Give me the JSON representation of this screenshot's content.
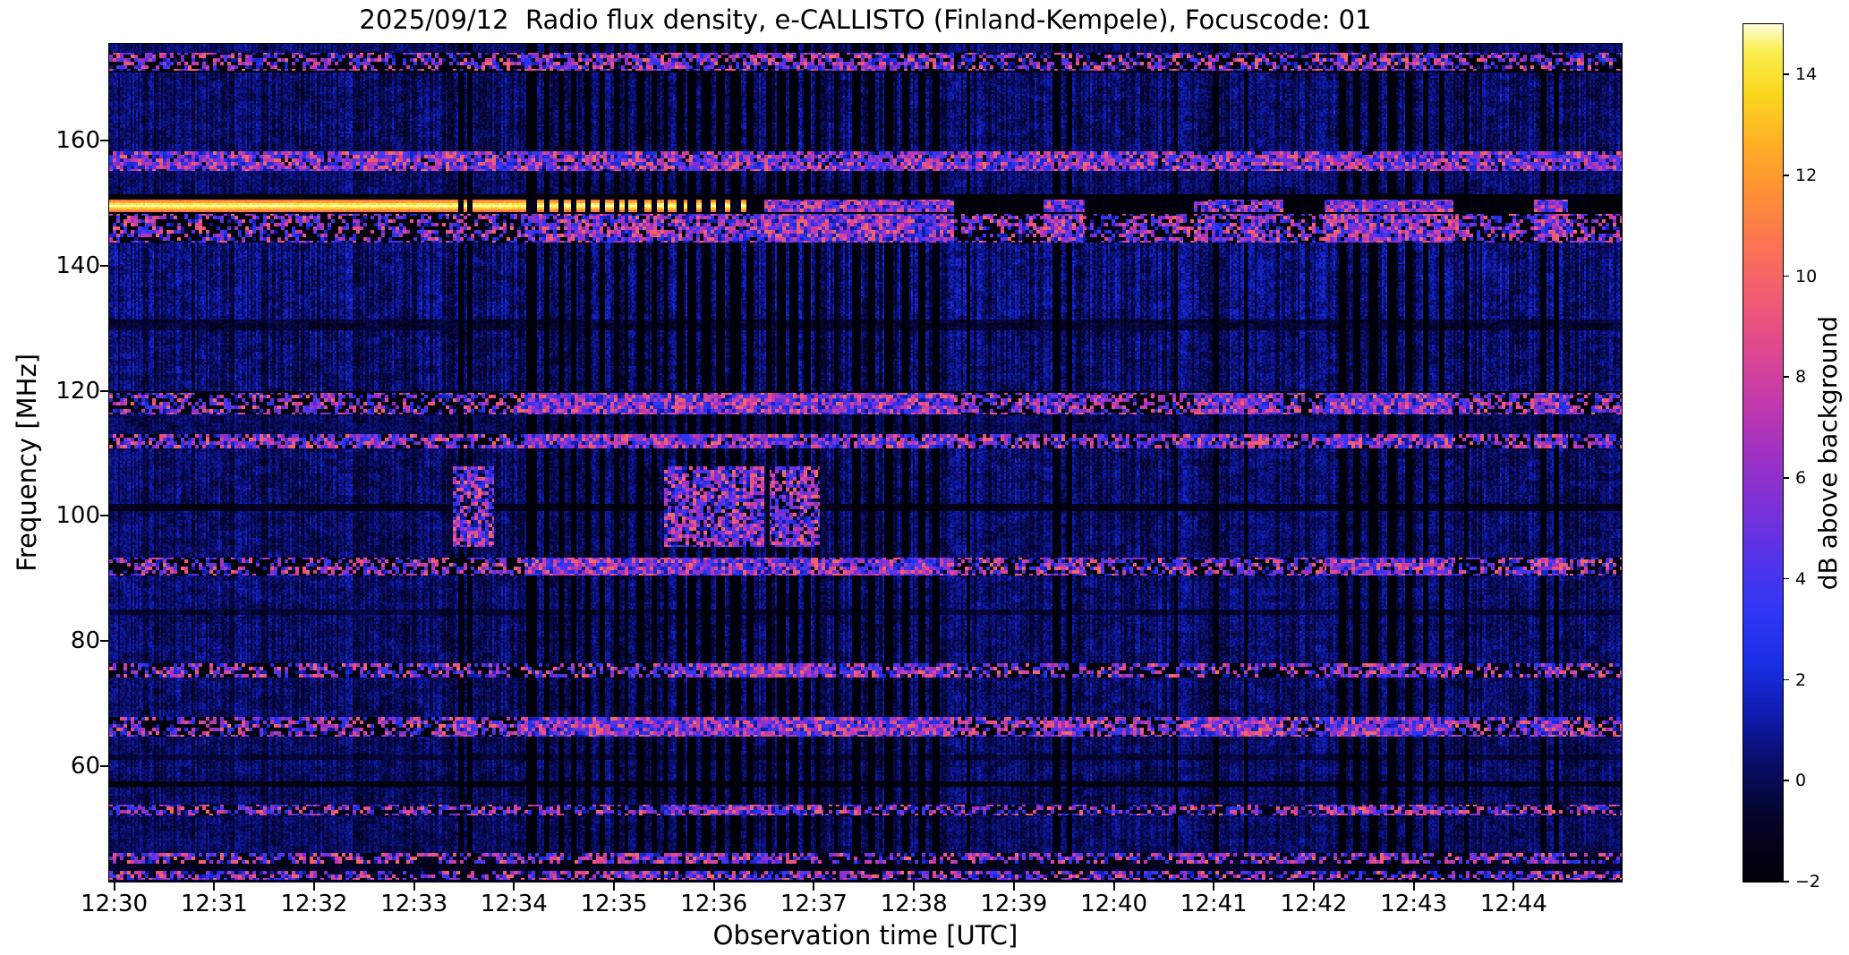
{
  "chart_data": {
    "type": "heatmap",
    "title": "2025/09/12  Radio flux density, e-CALLISTO (Finland-Kempele), Focuscode: 01",
    "xlabel": "Observation time [UTC]",
    "ylabel": "Frequency [MHz]",
    "start_time_utc": "12:30",
    "x_tick_labels": [
      "12:30",
      "12:31",
      "12:32",
      "12:33",
      "12:34",
      "12:35",
      "12:36",
      "12:37",
      "12:38",
      "12:39",
      "12:40",
      "12:41",
      "12:42",
      "12:43",
      "12:44"
    ],
    "x_tick_minutes": [
      0,
      1,
      2,
      3,
      4,
      5,
      6,
      7,
      8,
      9,
      10,
      11,
      12,
      13,
      14
    ],
    "time_range_minutes": [
      -0.05,
      15.08
    ],
    "y_tick_values": [
      160,
      140,
      120,
      100,
      80,
      60
    ],
    "freq_range_mhz": [
      41.5,
      175.5
    ],
    "colorbar": {
      "label": "dB above background",
      "tick_values": [
        14,
        12,
        10,
        8,
        6,
        4,
        2,
        0,
        -2
      ],
      "vmin": -2,
      "vmax": 15
    },
    "colormap_stops": [
      [
        0.0,
        0,
        0,
        6
      ],
      [
        0.07,
        4,
        3,
        40
      ],
      [
        0.13,
        8,
        12,
        95
      ],
      [
        0.19,
        14,
        26,
        170
      ],
      [
        0.25,
        25,
        45,
        225
      ],
      [
        0.31,
        45,
        55,
        245
      ],
      [
        0.37,
        80,
        52,
        235
      ],
      [
        0.44,
        125,
        48,
        215
      ],
      [
        0.5,
        160,
        50,
        195
      ],
      [
        0.56,
        195,
        58,
        172
      ],
      [
        0.62,
        222,
        72,
        145
      ],
      [
        0.68,
        240,
        92,
        115
      ],
      [
        0.74,
        250,
        115,
        85
      ],
      [
        0.8,
        254,
        142,
        55
      ],
      [
        0.86,
        254,
        175,
        38
      ],
      [
        0.92,
        251,
        215,
        30
      ],
      [
        0.97,
        250,
        240,
        80
      ],
      [
        1.0,
        252,
        252,
        215
      ]
    ],
    "bands": [
      {
        "f": [
          175.5,
          174.2
        ],
        "base": 1.2,
        "noise": 1.2,
        "streak": 0.7
      },
      {
        "f": [
          174.2,
          171.0
        ],
        "base": -1.3,
        "noise": 0.8,
        "streak": 0.2
      },
      {
        "f": [
          171.0,
          158.2
        ],
        "base": 1.5,
        "noise": 1.5,
        "streak": 1.1
      },
      {
        "f": [
          158.2,
          155.3
        ],
        "base": -1.1,
        "noise": 1.0,
        "streak": 0.2
      },
      {
        "f": [
          155.3,
          151.5
        ],
        "base": 1.3,
        "noise": 1.3,
        "streak": 0.8
      },
      {
        "f": [
          151.5,
          143.6
        ],
        "base": -1.45,
        "noise": 0.7,
        "streak": 0.2
      },
      {
        "f": [
          143.6,
          131.5
        ],
        "base": 1.9,
        "noise": 1.6,
        "streak": 1.3
      },
      {
        "f": [
          131.5,
          129.8
        ],
        "base": 0.1,
        "noise": 0.9,
        "streak": 0.4
      },
      {
        "f": [
          129.8,
          119.9
        ],
        "base": 1.6,
        "noise": 1.5,
        "streak": 1.2
      },
      {
        "f": [
          119.9,
          116.2
        ],
        "base": -1.3,
        "noise": 0.9,
        "streak": 0.2
      },
      {
        "f": [
          116.2,
          113.2
        ],
        "base": 0.9,
        "noise": 1.1,
        "streak": 0.6
      },
      {
        "f": [
          113.2,
          110.8
        ],
        "base": -1.4,
        "noise": 0.7,
        "streak": 0.2
      },
      {
        "f": [
          110.8,
          101.8
        ],
        "base": 1.4,
        "noise": 1.5,
        "streak": 1.0
      },
      {
        "f": [
          101.8,
          100.8
        ],
        "base": -0.8,
        "noise": 0.7,
        "streak": 0.2
      },
      {
        "f": [
          100.8,
          93.4
        ],
        "base": 1.4,
        "noise": 1.4,
        "streak": 1.0
      },
      {
        "f": [
          93.4,
          90.4
        ],
        "base": -1.3,
        "noise": 0.8,
        "streak": 0.2
      },
      {
        "f": [
          90.4,
          84.9
        ],
        "base": 1.5,
        "noise": 1.4,
        "streak": 1.0
      },
      {
        "f": [
          84.9,
          84.2
        ],
        "base": 0.0,
        "noise": 0.8,
        "streak": 0.3
      },
      {
        "f": [
          84.2,
          76.4
        ],
        "base": 1.4,
        "noise": 1.4,
        "streak": 1.0
      },
      {
        "f": [
          76.4,
          74.0
        ],
        "base": -1.1,
        "noise": 0.9,
        "streak": 0.2
      },
      {
        "f": [
          74.0,
          67.8
        ],
        "base": 1.4,
        "noise": 1.4,
        "streak": 1.0
      },
      {
        "f": [
          67.8,
          64.6
        ],
        "base": -1.4,
        "noise": 0.8,
        "streak": 0.2
      },
      {
        "f": [
          64.6,
          61.8
        ],
        "base": 1.3,
        "noise": 1.3,
        "streak": 0.9
      },
      {
        "f": [
          61.8,
          61.0
        ],
        "base": 0.1,
        "noise": 0.7,
        "streak": 0.3
      },
      {
        "f": [
          61.0,
          57.4
        ],
        "base": 1.3,
        "noise": 1.3,
        "streak": 0.9
      },
      {
        "f": [
          57.4,
          56.6
        ],
        "base": -1.2,
        "noise": 0.5,
        "streak": 0.1
      },
      {
        "f": [
          56.6,
          53.8
        ],
        "base": 1.2,
        "noise": 1.3,
        "streak": 0.9
      },
      {
        "f": [
          53.8,
          52.0
        ],
        "base": -0.5,
        "noise": 0.9,
        "streak": 0.3
      },
      {
        "f": [
          52.0,
          46.2
        ],
        "base": 1.2,
        "noise": 1.3,
        "streak": 0.8
      },
      {
        "f": [
          46.2,
          44.2
        ],
        "base": -0.7,
        "noise": 0.9,
        "streak": 0.2
      },
      {
        "f": [
          44.2,
          41.5
        ],
        "base": -0.3,
        "noise": 1.1,
        "streak": 0.4
      }
    ],
    "bright_line": {
      "center_mhz": 149.6,
      "half_width_mhz": 1.05,
      "t_end_min": 6.38,
      "peak_db": 15,
      "edge_db": 9
    },
    "speckle_rows": [
      {
        "f": [
          158.2,
          155.3
        ],
        "rate": 0.42,
        "windows": []
      },
      {
        "f": [
          174.1,
          171.1
        ],
        "rate": 0.03,
        "windows": [
          [
            4.1,
            6.5,
            0.25
          ],
          [
            6.5,
            8.4,
            0.25
          ],
          [
            12.1,
            13.4,
            0.25
          ]
        ]
      },
      {
        "f": [
          150.6,
          148.6
        ],
        "rate": 0.0,
        "windows": [
          [
            6.5,
            8.4,
            0.5
          ],
          [
            9.3,
            9.7,
            0.5
          ],
          [
            10.8,
            11.7,
            0.35
          ],
          [
            12.1,
            13.4,
            0.5
          ],
          [
            14.2,
            14.55,
            0.5
          ]
        ]
      },
      {
        "f": [
          148.3,
          143.8
        ],
        "rate": 0.02,
        "windows": [
          [
            4.1,
            6.5,
            0.3
          ],
          [
            6.5,
            8.4,
            0.5
          ],
          [
            9.3,
            9.7,
            0.4
          ],
          [
            10.8,
            11.7,
            0.3
          ],
          [
            12.1,
            13.4,
            0.45
          ],
          [
            14.2,
            14.55,
            0.45
          ]
        ]
      },
      {
        "f": [
          119.8,
          116.3
        ],
        "rate": 0.06,
        "windows": [
          [
            4.1,
            6.5,
            0.5
          ],
          [
            6.5,
            8.4,
            0.55
          ],
          [
            9.3,
            9.7,
            0.4
          ],
          [
            10.8,
            11.7,
            0.45
          ],
          [
            12.1,
            13.4,
            0.5
          ],
          [
            14.2,
            14.55,
            0.5
          ]
        ]
      },
      {
        "f": [
          113.1,
          110.9
        ],
        "rate": 0.1,
        "windows": [
          [
            0.0,
            3.6,
            0.22
          ],
          [
            4.1,
            6.5,
            0.45
          ],
          [
            6.5,
            8.4,
            0.4
          ],
          [
            10.8,
            11.7,
            0.4
          ],
          [
            12.1,
            13.4,
            0.4
          ],
          [
            14.2,
            14.55,
            0.4
          ]
        ]
      },
      {
        "f": [
          108.0,
          95.0
        ],
        "rate": 0.0,
        "windows": [
          [
            3.38,
            3.8,
            0.22
          ],
          [
            5.5,
            6.5,
            0.32
          ],
          [
            6.55,
            7.05,
            0.28
          ]
        ]
      },
      {
        "f": [
          93.3,
          90.5
        ],
        "rate": 0.04,
        "windows": [
          [
            4.1,
            6.5,
            0.5
          ],
          [
            6.5,
            8.4,
            0.45
          ],
          [
            9.3,
            9.7,
            0.35
          ],
          [
            12.1,
            13.4,
            0.45
          ],
          [
            14.2,
            14.55,
            0.45
          ]
        ]
      },
      {
        "f": [
          76.3,
          74.1
        ],
        "rate": 0.02,
        "windows": [
          [
            5.5,
            7.1,
            0.45
          ],
          [
            6.5,
            8.4,
            0.3
          ],
          [
            12.1,
            13.4,
            0.3
          ]
        ]
      },
      {
        "f": [
          67.7,
          64.7
        ],
        "rate": 0.1,
        "windows": [
          [
            3.4,
            3.62,
            0.6
          ],
          [
            4.1,
            6.5,
            0.5
          ],
          [
            6.5,
            8.4,
            0.55
          ],
          [
            9.3,
            9.7,
            0.4
          ],
          [
            10.7,
            11.7,
            0.55
          ],
          [
            12.1,
            13.4,
            0.5
          ],
          [
            14.2,
            14.55,
            0.55
          ]
        ]
      },
      {
        "f": [
          53.7,
          52.1
        ],
        "rate": 0.03,
        "windows": [
          [
            5.5,
            6.5,
            0.4
          ],
          [
            6.5,
            7.1,
            0.3
          ],
          [
            12.1,
            13.4,
            0.25
          ]
        ]
      },
      {
        "f": [
          46.1,
          44.3
        ],
        "rate": 0.05,
        "windows": [
          [
            0.2,
            0.5,
            0.3
          ],
          [
            5.0,
            6.6,
            0.3
          ],
          [
            14.2,
            14.5,
            0.4
          ]
        ]
      },
      {
        "f": [
          43.2,
          41.8
        ],
        "rate": 0.08,
        "windows": [
          [
            5.0,
            6.6,
            0.3
          ],
          [
            14.2,
            14.5,
            0.35
          ]
        ]
      }
    ],
    "gap_stripes": [
      {
        "t": 3.47,
        "w": 0.06
      },
      {
        "t": 3.56,
        "w": 0.04
      },
      {
        "t": 4.18,
        "w": 0.1
      },
      {
        "t": 4.33,
        "w": 0.06
      },
      {
        "t": 4.47,
        "w": 0.05
      },
      {
        "t": 4.6,
        "w": 0.06
      },
      {
        "t": 4.74,
        "w": 0.05
      },
      {
        "t": 4.88,
        "w": 0.06
      },
      {
        "t": 5.02,
        "w": 0.05
      },
      {
        "t": 5.13,
        "w": 0.04
      },
      {
        "t": 5.27,
        "w": 0.06
      },
      {
        "t": 5.4,
        "w": 0.05
      },
      {
        "t": 5.52,
        "w": 0.04
      },
      {
        "t": 5.66,
        "w": 0.08
      },
      {
        "t": 5.78,
        "w": 0.09
      },
      {
        "t": 5.92,
        "w": 0.1
      },
      {
        "t": 6.07,
        "w": 0.09
      },
      {
        "t": 6.22,
        "w": 0.1
      },
      {
        "t": 6.36,
        "w": 0.08
      },
      {
        "t": 6.55,
        "w": 0.06
      },
      {
        "t": 6.67,
        "w": 0.08
      },
      {
        "t": 6.8,
        "w": 0.1
      },
      {
        "t": 6.93,
        "w": 0.06
      },
      {
        "t": 7.04,
        "w": 0.05
      },
      {
        "t": 7.22,
        "w": 0.05
      },
      {
        "t": 7.42,
        "w": 0.09
      },
      {
        "t": 7.58,
        "w": 0.08
      },
      {
        "t": 7.74,
        "w": 0.09
      },
      {
        "t": 7.92,
        "w": 0.08
      },
      {
        "t": 8.08,
        "w": 0.07
      },
      {
        "t": 8.22,
        "w": 0.06
      },
      {
        "t": 8.55,
        "w": 0.04
      },
      {
        "t": 9.42,
        "w": 0.06
      },
      {
        "t": 9.55,
        "w": 0.05
      },
      {
        "t": 10.62,
        "w": 0.04
      },
      {
        "t": 11.02,
        "w": 0.05
      },
      {
        "t": 11.32,
        "w": 0.04
      },
      {
        "t": 12.28,
        "w": 0.07
      },
      {
        "t": 12.43,
        "w": 0.06
      },
      {
        "t": 12.6,
        "w": 0.08
      },
      {
        "t": 12.78,
        "w": 0.1
      },
      {
        "t": 12.95,
        "w": 0.06
      },
      {
        "t": 13.12,
        "w": 0.06
      },
      {
        "t": 13.28,
        "w": 0.05
      },
      {
        "t": 13.52,
        "w": 0.04
      },
      {
        "t": 14.3,
        "w": 0.06
      },
      {
        "t": 14.42,
        "w": 0.05
      }
    ]
  }
}
